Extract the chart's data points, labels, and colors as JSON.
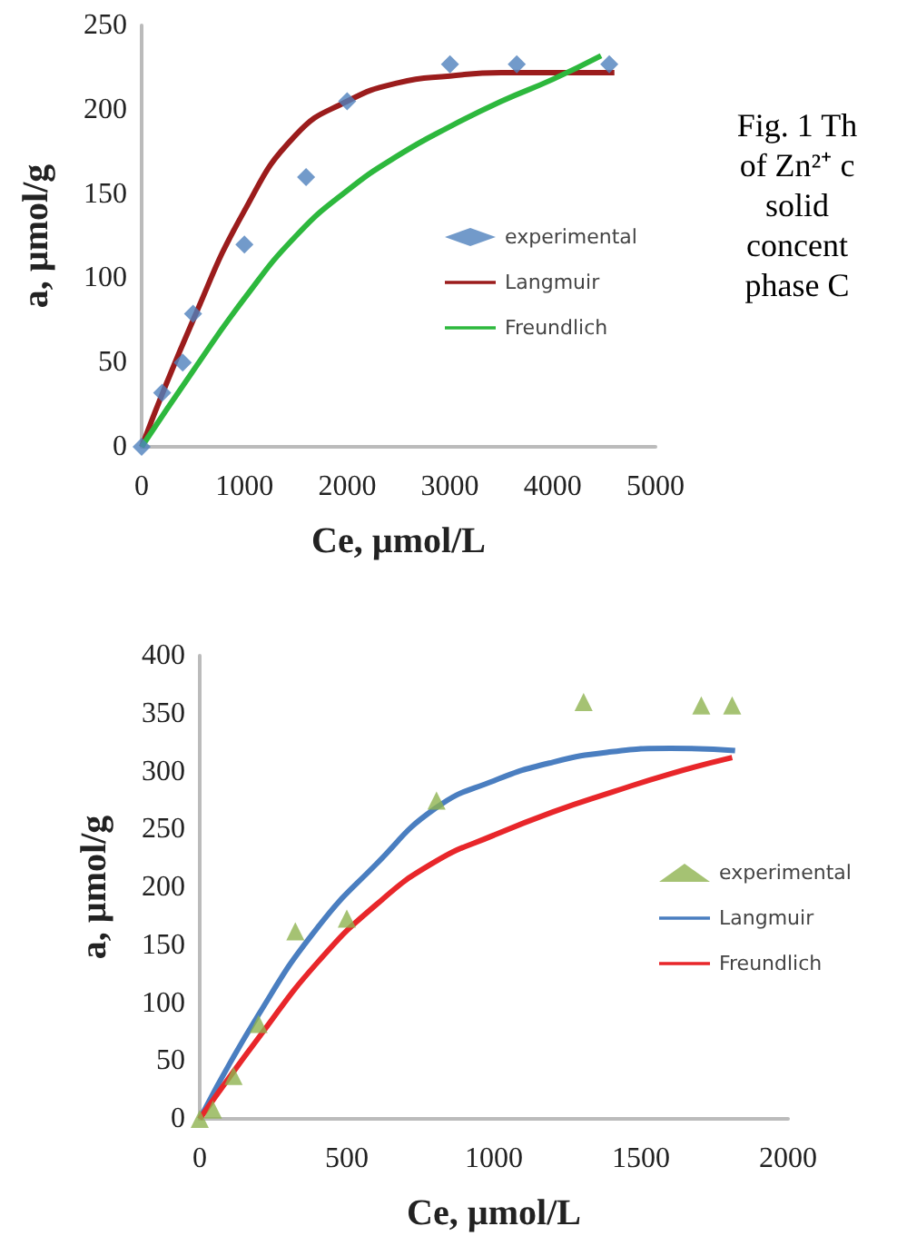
{
  "chart_data": [
    {
      "type": "scatter",
      "xlabel": "Ce, µmol/L",
      "ylabel": "a, µmol/g",
      "xlim": [
        0,
        5000
      ],
      "xticks": [
        0,
        1000,
        2000,
        3000,
        4000,
        5000
      ],
      "ylim": [
        0,
        250
      ],
      "yticks": [
        0,
        50,
        100,
        150,
        200,
        250
      ],
      "grid": false,
      "legend": "right",
      "annotations": [
        "Fig. 1 Th\nof Zn²⁺ c\nsolid\nconcent\nphase C"
      ],
      "series": [
        {
          "name": "experimental",
          "type": "scatter",
          "marker": "diamond",
          "color": "#4f81bd",
          "x": [
            0,
            200,
            400,
            500,
            1000,
            1600,
            2000,
            3000,
            3650,
            4550
          ],
          "values": [
            0,
            32,
            50,
            79,
            120,
            160,
            205,
            227,
            227,
            227
          ]
        },
        {
          "name": "Langmuir",
          "type": "line",
          "marker": "none",
          "color": "#9b1c1c",
          "x": [
            0,
            500,
            1000,
            1500,
            2000,
            2500,
            3000,
            3500,
            4000,
            4600
          ],
          "values": [
            0,
            75,
            140,
            185,
            205,
            216,
            220,
            222,
            222,
            222
          ]
        },
        {
          "name": "Freundlich",
          "type": "line",
          "marker": "none",
          "color": "#2db83d",
          "x": [
            0,
            500,
            1000,
            1500,
            2000,
            2500,
            3000,
            3500,
            4000,
            4470
          ],
          "values": [
            0,
            45,
            88,
            125,
            152,
            173,
            190,
            205,
            218,
            232
          ]
        }
      ]
    },
    {
      "type": "scatter",
      "xlabel": "Ce, µmol/L",
      "ylabel": "a, µmol/g",
      "xlim": [
        0,
        2000
      ],
      "xticks": [
        0,
        500,
        1000,
        1500,
        2000
      ],
      "ylim": [
        0,
        400
      ],
      "yticks": [
        0,
        50,
        100,
        150,
        200,
        250,
        300,
        350,
        400
      ],
      "grid": false,
      "legend": "right",
      "series": [
        {
          "name": "experimental",
          "type": "scatter",
          "marker": "triangle",
          "color": "#8fb350",
          "x": [
            0,
            45,
            115,
            200,
            325,
            500,
            805,
            1305,
            1705,
            1810
          ],
          "values": [
            0,
            8,
            37,
            82,
            162,
            173,
            275,
            360,
            357,
            357
          ]
        },
        {
          "name": "Langmuir",
          "type": "line",
          "marker": "none",
          "color": "#4a7ec0",
          "x": [
            0,
            200,
            400,
            600,
            800,
            1000,
            1200,
            1400,
            1600,
            1820
          ],
          "values": [
            0,
            90,
            165,
            220,
            268,
            292,
            308,
            317,
            320,
            318
          ]
        },
        {
          "name": "Freundlich",
          "type": "line",
          "marker": "none",
          "color": "#e8262a",
          "x": [
            0,
            200,
            400,
            600,
            800,
            1000,
            1200,
            1400,
            1600,
            1810
          ],
          "values": [
            0,
            70,
            135,
            185,
            222,
            245,
            265,
            282,
            298,
            312
          ]
        }
      ]
    }
  ]
}
